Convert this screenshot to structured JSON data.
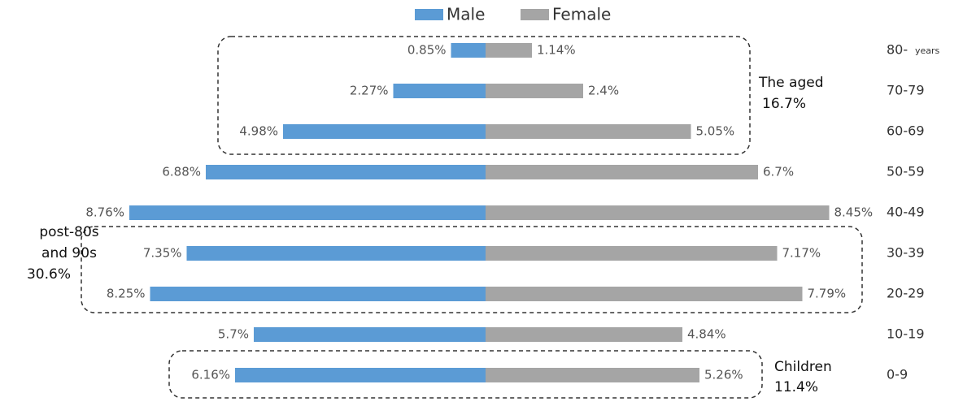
{
  "chart_data": {
    "type": "pyramid",
    "categories": [
      "80-",
      "70-79",
      "60-69",
      "50-59",
      "40-49",
      "30-39",
      "20-29",
      "10-19",
      "0-9"
    ],
    "category_unit": "years",
    "xlim": [
      0,
      9
    ],
    "series": [
      {
        "name": "Male",
        "color": "#5b9bd5",
        "values": [
          0.85,
          2.27,
          4.98,
          6.88,
          8.76,
          7.35,
          8.25,
          5.7,
          6.16
        ],
        "value_labels": [
          "0.85%",
          "2.27%",
          "4.98%",
          "6.88%",
          "8.76%",
          "7.35%",
          "8.25%",
          "5.7%",
          "6.16%"
        ]
      },
      {
        "name": "Female",
        "color": "#a5a5a5",
        "values": [
          1.14,
          2.4,
          5.05,
          6.7,
          8.45,
          7.17,
          7.79,
          4.84,
          5.26
        ],
        "value_labels": [
          "1.14%",
          "2.4%",
          "5.05%",
          "6.7%",
          "8.45%",
          "7.17%",
          "7.79%",
          "4.84%",
          "5.26%"
        ]
      }
    ],
    "annotations": [
      {
        "lines": [
          "The aged",
          "16.7%"
        ]
      },
      {
        "lines": [
          "post-80s",
          "and 90s",
          "30.6%"
        ]
      },
      {
        "lines": [
          "Children",
          "11.4%"
        ]
      }
    ]
  }
}
